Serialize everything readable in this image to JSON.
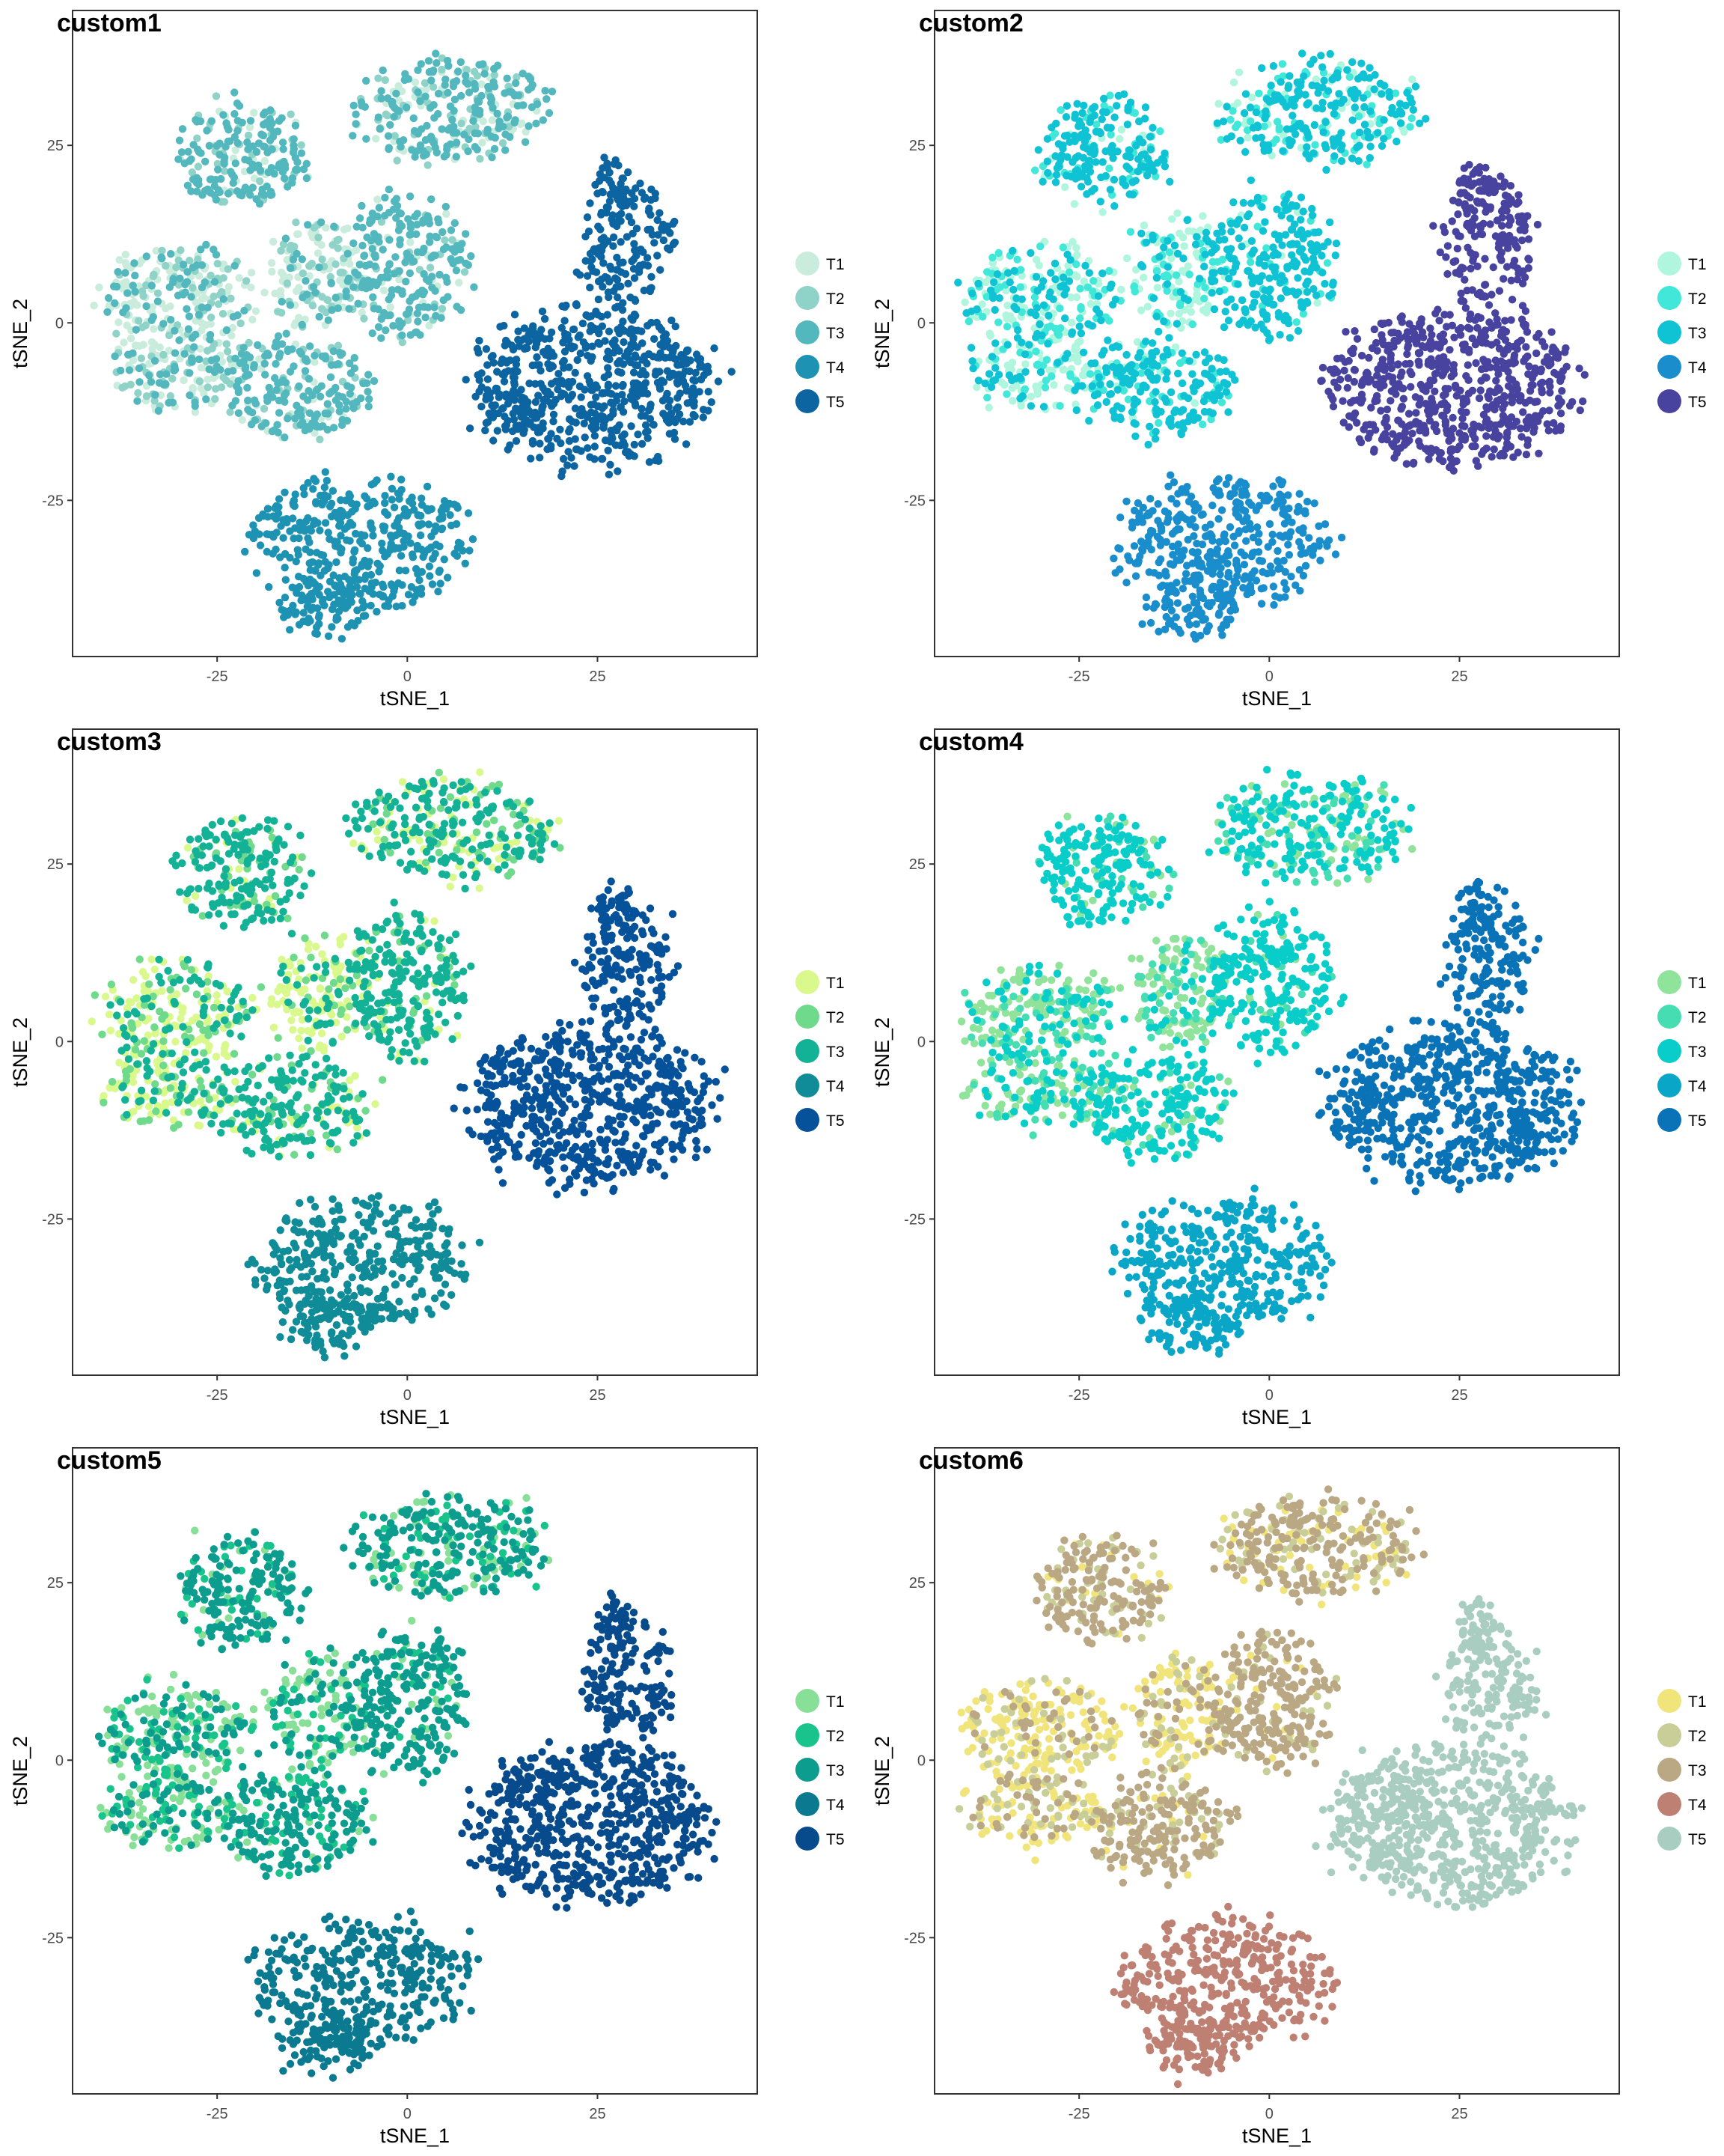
{
  "chart_data": [
    {
      "type": "scatter",
      "title": "custom1",
      "xlabel": "tSNE_1",
      "ylabel": "tSNE_2",
      "xlim": [
        -44,
        46
      ],
      "ylim": [
        -47,
        44
      ],
      "xticks": [
        -25,
        0,
        25
      ],
      "yticks": [
        -25,
        0,
        25
      ],
      "grid": false,
      "legend_position": "right",
      "series": [
        {
          "name": "T1",
          "color": "#c9ecdc"
        },
        {
          "name": "T2",
          "color": "#8fd3c8"
        },
        {
          "name": "T3",
          "color": "#53b7be"
        },
        {
          "name": "T4",
          "color": "#1e92b3"
        },
        {
          "name": "T5",
          "color": "#0c64a0"
        }
      ]
    },
    {
      "type": "scatter",
      "title": "custom2",
      "xlabel": "tSNE_1",
      "ylabel": "tSNE_2",
      "xlim": [
        -44,
        46
      ],
      "ylim": [
        -47,
        44
      ],
      "xticks": [
        -25,
        0,
        25
      ],
      "yticks": [
        -25,
        0,
        25
      ],
      "grid": false,
      "legend_position": "right",
      "series": [
        {
          "name": "T1",
          "color": "#b0f5de"
        },
        {
          "name": "T2",
          "color": "#41e8d9"
        },
        {
          "name": "T3",
          "color": "#0fc3d4"
        },
        {
          "name": "T4",
          "color": "#1a8ecc"
        },
        {
          "name": "T5",
          "color": "#48439e"
        }
      ]
    },
    {
      "type": "scatter",
      "title": "custom3",
      "xlabel": "tSNE_1",
      "ylabel": "tSNE_2",
      "xlim": [
        -44,
        46
      ],
      "ylim": [
        -47,
        44
      ],
      "xticks": [
        -25,
        0,
        25
      ],
      "yticks": [
        -25,
        0,
        25
      ],
      "grid": false,
      "legend_position": "right",
      "series": [
        {
          "name": "T1",
          "color": "#d9f98d"
        },
        {
          "name": "T2",
          "color": "#6fd98c"
        },
        {
          "name": "T3",
          "color": "#13b296"
        },
        {
          "name": "T4",
          "color": "#108b98"
        },
        {
          "name": "T5",
          "color": "#06529a"
        }
      ]
    },
    {
      "type": "scatter",
      "title": "custom4",
      "xlabel": "tSNE_1",
      "ylabel": "tSNE_2",
      "xlim": [
        -44,
        46
      ],
      "ylim": [
        -47,
        44
      ],
      "xticks": [
        -25,
        0,
        25
      ],
      "yticks": [
        -25,
        0,
        25
      ],
      "grid": false,
      "legend_position": "right",
      "series": [
        {
          "name": "T1",
          "color": "#8fe39a"
        },
        {
          "name": "T2",
          "color": "#47ddb3"
        },
        {
          "name": "T3",
          "color": "#08cdc8"
        },
        {
          "name": "T4",
          "color": "#0aa6c7"
        },
        {
          "name": "T5",
          "color": "#0a72b6"
        }
      ]
    },
    {
      "type": "scatter",
      "title": "custom5",
      "xlabel": "tSNE_1",
      "ylabel": "tSNE_2",
      "xlim": [
        -44,
        46
      ],
      "ylim": [
        -47,
        44
      ],
      "xticks": [
        -25,
        0,
        25
      ],
      "yticks": [
        -25,
        0,
        25
      ],
      "grid": false,
      "legend_position": "right",
      "series": [
        {
          "name": "T1",
          "color": "#88df97"
        },
        {
          "name": "T2",
          "color": "#18c48c"
        },
        {
          "name": "T3",
          "color": "#0c9d8f"
        },
        {
          "name": "T4",
          "color": "#0b7a90"
        },
        {
          "name": "T5",
          "color": "#074b8c"
        }
      ]
    },
    {
      "type": "scatter",
      "title": "custom6",
      "xlabel": "tSNE_1",
      "ylabel": "tSNE_2",
      "xlim": [
        -44,
        46
      ],
      "ylim": [
        -47,
        44
      ],
      "xticks": [
        -25,
        0,
        25
      ],
      "yticks": [
        -25,
        0,
        25
      ],
      "grid": false,
      "legend_position": "right",
      "series": [
        {
          "name": "T1",
          "color": "#f1e47b"
        },
        {
          "name": "T2",
          "color": "#c9cd98"
        },
        {
          "name": "T3",
          "color": "#baa784"
        },
        {
          "name": "T4",
          "color": "#bf8074"
        },
        {
          "name": "T5",
          "color": "#a9cdc0"
        }
      ]
    }
  ]
}
